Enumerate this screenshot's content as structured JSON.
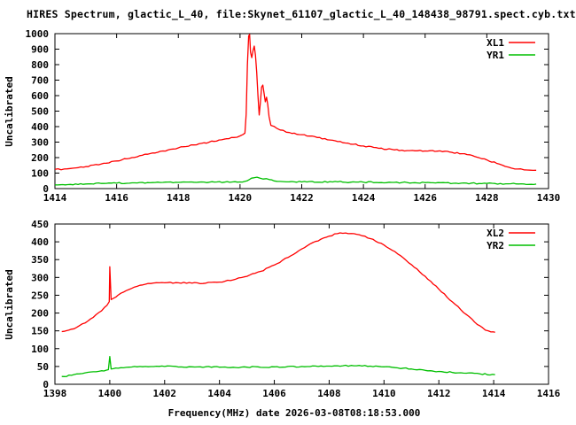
{
  "title": "HIRES Spectrum, glactic_L_40, file:Skynet_61107_glactic_L_40_148438_98791.spect.cyb.txt",
  "chart_data": [
    {
      "type": "line",
      "title": "",
      "ylabel": "Uncalibrated",
      "xlabel": "",
      "xlim": [
        1414,
        1430
      ],
      "ylim": [
        0,
        1000
      ],
      "xtick_step": 2,
      "ytick_step": 100,
      "grid": false,
      "legend_position": "top-right-inside",
      "series": [
        {
          "name": "XL1",
          "color": "#ff0000",
          "points": [
            [
              1414.0,
              124
            ],
            [
              1414.3,
              126
            ],
            [
              1414.6,
              132
            ],
            [
              1415.0,
              142
            ],
            [
              1415.5,
              158
            ],
            [
              1416.0,
              178
            ],
            [
              1416.5,
              200
            ],
            [
              1417.0,
              222
            ],
            [
              1417.5,
              243
            ],
            [
              1418.0,
              263
            ],
            [
              1418.5,
              282
            ],
            [
              1419.0,
              300
            ],
            [
              1419.4,
              315
            ],
            [
              1419.8,
              330
            ],
            [
              1420.0,
              340
            ],
            [
              1420.1,
              350
            ],
            [
              1420.16,
              358
            ],
            [
              1420.2,
              480
            ],
            [
              1420.24,
              800
            ],
            [
              1420.28,
              985
            ],
            [
              1420.31,
              995
            ],
            [
              1420.34,
              880
            ],
            [
              1420.38,
              845
            ],
            [
              1420.42,
              890
            ],
            [
              1420.46,
              920
            ],
            [
              1420.5,
              860
            ],
            [
              1420.54,
              750
            ],
            [
              1420.58,
              600
            ],
            [
              1420.62,
              475
            ],
            [
              1420.66,
              560
            ],
            [
              1420.7,
              655
            ],
            [
              1420.74,
              668
            ],
            [
              1420.78,
              615
            ],
            [
              1420.82,
              560
            ],
            [
              1420.86,
              590
            ],
            [
              1420.9,
              540
            ],
            [
              1420.94,
              465
            ],
            [
              1421.0,
              408
            ],
            [
              1421.3,
              378
            ],
            [
              1421.6,
              362
            ],
            [
              1422.0,
              348
            ],
            [
              1422.5,
              330
            ],
            [
              1423.0,
              312
            ],
            [
              1423.5,
              293
            ],
            [
              1424.0,
              275
            ],
            [
              1424.5,
              260
            ],
            [
              1425.0,
              250
            ],
            [
              1425.5,
              245
            ],
            [
              1426.0,
              243
            ],
            [
              1426.4,
              242
            ],
            [
              1426.8,
              236
            ],
            [
              1427.2,
              225
            ],
            [
              1427.6,
              208
            ],
            [
              1428.0,
              185
            ],
            [
              1428.4,
              158
            ],
            [
              1428.7,
              138
            ],
            [
              1429.0,
              126
            ],
            [
              1429.2,
              121
            ],
            [
              1429.4,
              119
            ],
            [
              1429.6,
              118
            ]
          ]
        },
        {
          "name": "YR1",
          "color": "#00bf00",
          "points": [
            [
              1414.0,
              24
            ],
            [
              1414.5,
              27
            ],
            [
              1415.0,
              30
            ],
            [
              1415.5,
              33
            ],
            [
              1416.0,
              35
            ],
            [
              1416.5,
              37
            ],
            [
              1417.0,
              39
            ],
            [
              1417.5,
              40
            ],
            [
              1418.0,
              40
            ],
            [
              1418.5,
              41
            ],
            [
              1419.0,
              41
            ],
            [
              1419.5,
              42
            ],
            [
              1420.0,
              43
            ],
            [
              1420.15,
              46
            ],
            [
              1420.3,
              58
            ],
            [
              1420.45,
              70
            ],
            [
              1420.55,
              74
            ],
            [
              1420.65,
              67
            ],
            [
              1420.75,
              62
            ],
            [
              1420.85,
              64
            ],
            [
              1420.95,
              58
            ],
            [
              1421.1,
              50
            ],
            [
              1421.3,
              46
            ],
            [
              1421.6,
              44
            ],
            [
              1422.0,
              43
            ],
            [
              1423.0,
              43
            ],
            [
              1424.0,
              42
            ],
            [
              1425.0,
              40
            ],
            [
              1426.0,
              38
            ],
            [
              1427.0,
              35
            ],
            [
              1428.0,
              33
            ],
            [
              1428.7,
              31
            ],
            [
              1429.2,
              30
            ],
            [
              1429.6,
              29
            ]
          ]
        }
      ]
    },
    {
      "type": "line",
      "title": "",
      "ylabel": "Uncalibrated",
      "xlabel": "Frequency(MHz) date 2026-03-08T08:18:53.000",
      "xlim": [
        1398,
        1416
      ],
      "ylim": [
        0,
        450
      ],
      "xtick_step": 2,
      "ytick_step": 50,
      "grid": false,
      "legend_position": "top-right-inside",
      "series": [
        {
          "name": "XL2",
          "color": "#ff0000",
          "points": [
            [
              1398.25,
              148
            ],
            [
              1398.5,
              152
            ],
            [
              1398.8,
              160
            ],
            [
              1399.1,
              172
            ],
            [
              1399.4,
              188
            ],
            [
              1399.7,
              206
            ],
            [
              1399.9,
              222
            ],
            [
              1399.98,
              232
            ],
            [
              1400.0,
              330
            ],
            [
              1400.05,
              238
            ],
            [
              1400.3,
              250
            ],
            [
              1400.6,
              263
            ],
            [
              1400.9,
              273
            ],
            [
              1401.2,
              279
            ],
            [
              1401.5,
              283
            ],
            [
              1402.0,
              285
            ],
            [
              1402.5,
              285
            ],
            [
              1403.0,
              284
            ],
            [
              1403.5,
              284
            ],
            [
              1404.0,
              287
            ],
            [
              1404.5,
              293
            ],
            [
              1405.0,
              303
            ],
            [
              1405.5,
              317
            ],
            [
              1406.0,
              335
            ],
            [
              1406.5,
              356
            ],
            [
              1407.0,
              380
            ],
            [
              1407.5,
              401
            ],
            [
              1408.0,
              416
            ],
            [
              1408.3,
              423
            ],
            [
              1408.6,
              425
            ],
            [
              1408.9,
              423
            ],
            [
              1409.2,
              417
            ],
            [
              1409.5,
              409
            ],
            [
              1410.0,
              391
            ],
            [
              1410.5,
              366
            ],
            [
              1411.0,
              336
            ],
            [
              1411.5,
              303
            ],
            [
              1412.0,
              267
            ],
            [
              1412.5,
              231
            ],
            [
              1413.0,
              196
            ],
            [
              1413.4,
              168
            ],
            [
              1413.7,
              152
            ],
            [
              1413.9,
              147
            ],
            [
              1414.05,
              146
            ]
          ]
        },
        {
          "name": "YR2",
          "color": "#00bf00",
          "points": [
            [
              1398.25,
              22
            ],
            [
              1398.6,
              25
            ],
            [
              1399.0,
              30
            ],
            [
              1399.4,
              35
            ],
            [
              1399.7,
              38
            ],
            [
              1399.95,
              41
            ],
            [
              1400.0,
              78
            ],
            [
              1400.05,
              43
            ],
            [
              1400.3,
              45
            ],
            [
              1400.7,
              48
            ],
            [
              1401.0,
              49
            ],
            [
              1402.0,
              50
            ],
            [
              1403.0,
              49
            ],
            [
              1404.0,
              48
            ],
            [
              1405.0,
              48
            ],
            [
              1406.0,
              49
            ],
            [
              1407.0,
              50
            ],
            [
              1408.0,
              51
            ],
            [
              1408.5,
              52
            ],
            [
              1409.0,
              52
            ],
            [
              1409.5,
              51
            ],
            [
              1410.0,
              49
            ],
            [
              1410.5,
              46
            ],
            [
              1411.0,
              43
            ],
            [
              1411.5,
              39
            ],
            [
              1412.0,
              36
            ],
            [
              1412.5,
              33
            ],
            [
              1413.0,
              31
            ],
            [
              1413.5,
              29
            ],
            [
              1414.05,
              27
            ]
          ]
        }
      ]
    }
  ]
}
